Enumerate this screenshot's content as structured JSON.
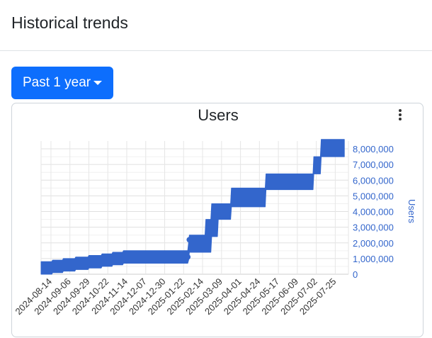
{
  "header": {
    "title": "Historical trends"
  },
  "range_selector": {
    "label": "Past 1 year"
  },
  "chart_data": {
    "type": "line",
    "title": "Users",
    "xlabel": "",
    "ylabel": "Users",
    "y_axis_side": "right",
    "ylim": [
      0,
      8500000
    ],
    "yticks": [
      0,
      1000000,
      2000000,
      3000000,
      4000000,
      5000000,
      6000000,
      7000000,
      8000000
    ],
    "ytick_labels": [
      "0",
      "1,000,000",
      "2,000,000",
      "3,000,000",
      "4,000,000",
      "5,000,000",
      "6,000,000",
      "7,000,000",
      "8,000,000"
    ],
    "xlim": [
      "2024-08-02",
      "2025-08-10"
    ],
    "xticks": [
      "2024-08-14",
      "2024-09-06",
      "2024-09-29",
      "2024-10-22",
      "2024-11-14",
      "2024-12-07",
      "2024-12-30",
      "2025-01-22",
      "2025-02-14",
      "2025-03-09",
      "2025-04-01",
      "2025-04-24",
      "2025-05-17",
      "2025-06-09",
      "2025-07-02",
      "2025-07-25"
    ],
    "grid": true,
    "legend": "none",
    "series_color": "#3366cc",
    "series": [
      {
        "x": [
          "2024-08-02",
          "2024-08-15",
          "2024-08-16",
          "2024-08-28",
          "2024-08-29",
          "2024-09-12",
          "2024-09-13",
          "2024-09-28",
          "2024-09-29",
          "2024-10-14",
          "2024-10-15",
          "2024-10-27",
          "2024-10-28",
          "2024-11-09",
          "2024-11-10",
          "2025-01-27",
          "2025-01-28",
          "2025-01-29",
          "2025-02-17",
          "2025-02-18",
          "2025-02-24",
          "2025-02-25",
          "2025-03-04",
          "2025-03-05",
          "2025-03-20",
          "2025-03-21",
          "2025-04-06",
          "2025-04-07",
          "2025-05-01",
          "2025-05-02",
          "2025-06-28",
          "2025-06-29",
          "2025-07-07",
          "2025-07-08",
          "2025-08-05"
        ],
        "low": [
          0,
          0,
          100000,
          100000,
          200000,
          200000,
          300000,
          300000,
          400000,
          400000,
          500000,
          500000,
          600000,
          600000,
          700000,
          700000,
          900000,
          1400000,
          1400000,
          1400000,
          1400000,
          2400000,
          2400000,
          3500000,
          3500000,
          4300000,
          4300000,
          4300000,
          4300000,
          5400000,
          5400000,
          6400000,
          6400000,
          7500000,
          7500000
        ],
        "high": [
          800000,
          800000,
          900000,
          900000,
          1000000,
          1000000,
          1100000,
          1100000,
          1200000,
          1200000,
          1300000,
          1300000,
          1400000,
          1400000,
          1500000,
          1500000,
          2000000,
          2500000,
          2500000,
          3500000,
          3500000,
          4500000,
          4500000,
          4500000,
          4500000,
          5500000,
          5500000,
          5500000,
          5500000,
          6400000,
          6400000,
          7500000,
          7500000,
          8600000,
          8600000
        ]
      }
    ]
  }
}
